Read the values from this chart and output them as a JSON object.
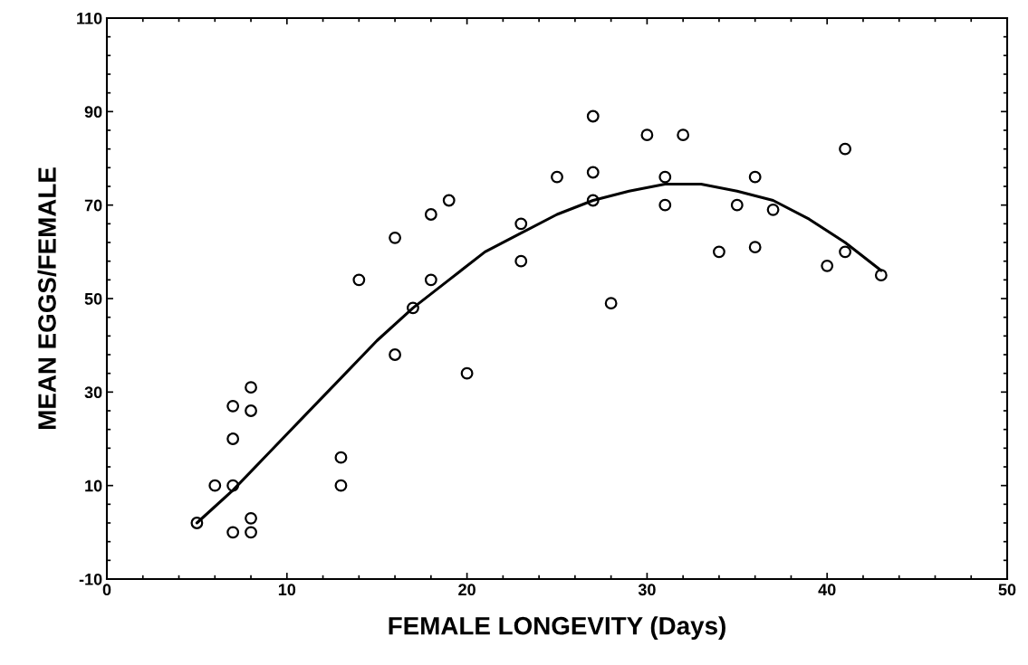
{
  "chart_data": {
    "type": "scatter",
    "xlabel": "FEMALE LONGEVITY (Days)",
    "ylabel": "MEAN EGGS/FEMALE",
    "xlim": [
      0,
      50
    ],
    "ylim": [
      -10,
      110
    ],
    "xticks": [
      0,
      {
        "value": 2,
        "label": null
      },
      {
        "value": 4,
        "label": null
      },
      {
        "value": 6,
        "label": null
      },
      {
        "value": 8,
        "label": null
      },
      10,
      {
        "value": 12,
        "label": null
      },
      {
        "value": 14,
        "label": null
      },
      {
        "value": 16,
        "label": null
      },
      {
        "value": 18,
        "label": null
      },
      20,
      {
        "value": 22,
        "label": null
      },
      {
        "value": 24,
        "label": null
      },
      {
        "value": 26,
        "label": null
      },
      {
        "value": 28,
        "label": null
      },
      30,
      {
        "value": 32,
        "label": null
      },
      {
        "value": 34,
        "label": null
      },
      {
        "value": 36,
        "label": null
      },
      {
        "value": 38,
        "label": null
      },
      40,
      {
        "value": 42,
        "label": null
      },
      {
        "value": 44,
        "label": null
      },
      {
        "value": 46,
        "label": null
      },
      {
        "value": 48,
        "label": null
      },
      50
    ],
    "yticks": [
      -10,
      {
        "value": -6,
        "label": null
      },
      {
        "value": -2,
        "label": null
      },
      {
        "value": 2,
        "label": null
      },
      {
        "value": 6,
        "label": null
      },
      10,
      {
        "value": 14,
        "label": null
      },
      {
        "value": 18,
        "label": null
      },
      {
        "value": 22,
        "label": null
      },
      {
        "value": 26,
        "label": null
      },
      30,
      {
        "value": 34,
        "label": null
      },
      {
        "value": 38,
        "label": null
      },
      {
        "value": 42,
        "label": null
      },
      {
        "value": 46,
        "label": null
      },
      50,
      {
        "value": 54,
        "label": null
      },
      {
        "value": 58,
        "label": null
      },
      {
        "value": 62,
        "label": null
      },
      {
        "value": 66,
        "label": null
      },
      70,
      {
        "value": 74,
        "label": null
      },
      {
        "value": 78,
        "label": null
      },
      {
        "value": 82,
        "label": null
      },
      {
        "value": 86,
        "label": null
      },
      90,
      {
        "value": 94,
        "label": null
      },
      {
        "value": 98,
        "label": null
      },
      {
        "value": 102,
        "label": null
      },
      {
        "value": 106,
        "label": null
      },
      110
    ],
    "grid": false,
    "legend": false,
    "series": [
      {
        "color": "#000000",
        "marker": "circle",
        "x": [
          5,
          6,
          7,
          7,
          7,
          7,
          8,
          8,
          8,
          8,
          13,
          13,
          14,
          16,
          16,
          17,
          18,
          18,
          19,
          20,
          23,
          23,
          25,
          27,
          27,
          27,
          28,
          30,
          31,
          31,
          32,
          34,
          35,
          36,
          36,
          37,
          40,
          41,
          41,
          43
        ],
        "values": [
          2,
          10,
          27,
          20,
          10,
          0,
          31,
          26,
          3,
          0,
          16,
          10,
          54,
          63,
          38,
          48,
          68,
          54,
          71,
          34,
          66,
          58,
          76,
          89,
          77,
          71,
          49,
          85,
          76,
          70,
          85,
          60,
          70,
          76,
          61,
          69,
          57,
          82,
          60,
          55
        ]
      },
      {
        "type": "line",
        "color": "#000000",
        "marker": "none",
        "line_style": "solid",
        "x": [
          5,
          7,
          9,
          11,
          13,
          15,
          17,
          19,
          21,
          23,
          25,
          27,
          29,
          31,
          33,
          35,
          37,
          39,
          41,
          43
        ],
        "values": [
          2,
          9,
          17,
          25,
          33,
          41,
          48,
          54,
          60,
          64,
          68,
          71,
          73,
          74.5,
          74.5,
          73,
          71,
          67,
          62,
          56
        ]
      }
    ]
  }
}
